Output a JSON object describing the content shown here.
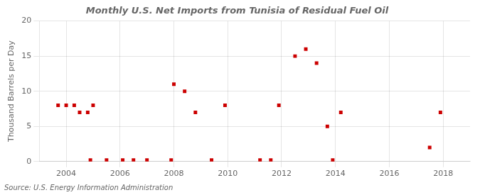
{
  "chart_data": {
    "type": "scatter",
    "title": "Monthly U.S. Net Imports from Tunisia of Residual Fuel Oil",
    "ylabel": "Thousand Barrels per Day",
    "annotation": "Source: U.S. Energy Information Administration",
    "color": "#cc0000",
    "marker": "square",
    "grid": true,
    "xlim": [
      2003.0,
      2019.0
    ],
    "ylim": [
      0,
      20
    ],
    "xticks": [
      2004,
      2006,
      2008,
      2010,
      2012,
      2014,
      2016,
      2018
    ],
    "yticks": [
      0,
      5,
      10,
      15,
      20
    ],
    "x": [
      2003.7,
      2004.0,
      2004.3,
      2004.5,
      2004.8,
      2005.0,
      2004.9,
      2005.5,
      2006.1,
      2006.5,
      2007.0,
      2007.9,
      2008.0,
      2008.4,
      2008.8,
      2009.4,
      2009.9,
      2011.2,
      2011.6,
      2011.9,
      2012.5,
      2012.9,
      2013.3,
      2013.7,
      2013.9,
      2014.2,
      2017.5,
      2017.9
    ],
    "values": [
      8,
      8,
      8,
      7,
      7,
      8,
      0.2,
      0.2,
      0.2,
      0.2,
      0.2,
      0.2,
      11,
      10,
      7,
      0.2,
      8,
      0.2,
      0.2,
      8,
      15,
      16,
      14,
      5,
      0.2,
      7,
      2,
      7
    ]
  }
}
